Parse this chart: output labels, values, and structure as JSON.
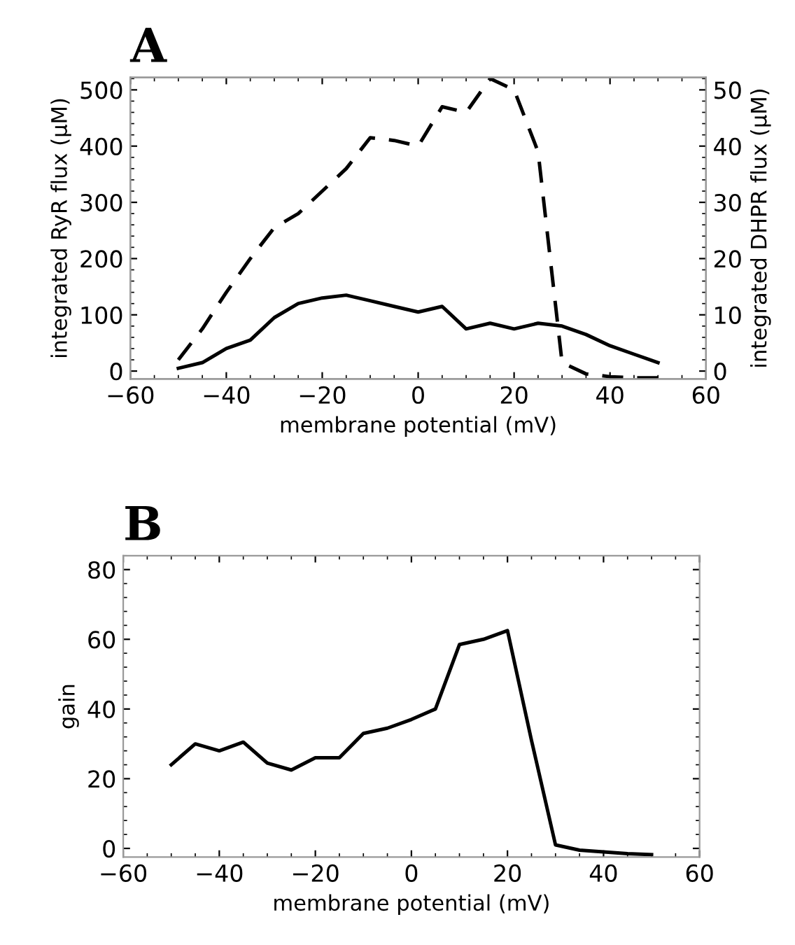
{
  "chart_data": [
    {
      "type": "line",
      "title": "A",
      "xlabel": "membrane potential (mV)",
      "ylabel": "integrated RyR flux (μM)",
      "y2label": "integrated DHPR flux (μM)",
      "x": [
        -50,
        -45,
        -40,
        -35,
        -30,
        -25,
        -20,
        -15,
        -10,
        -5,
        0,
        5,
        10,
        15,
        20,
        25,
        30,
        35,
        40,
        45,
        50
      ],
      "series": [
        {
          "color": "#000000",
          "line_style": "solid",
          "values": [
            5,
            15,
            40,
            55,
            95,
            120,
            130,
            135,
            125,
            115,
            105,
            115,
            75,
            85,
            75,
            85,
            80,
            65,
            45,
            30,
            15
          ]
        },
        {
          "color": "#000000",
          "line_style": "dashed",
          "axis": "y2",
          "values": [
            2,
            7.5,
            14,
            20,
            25.5,
            28,
            32,
            36,
            41.5,
            41,
            40,
            47,
            46,
            52,
            50,
            39,
            1.5,
            -0.5,
            -1,
            -1.2,
            -1.2
          ]
        }
      ],
      "xlim": [
        -60,
        60
      ],
      "xticks": [
        {
          "value": -60,
          "label": "−60"
        },
        {
          "value": -40,
          "label": "−40"
        },
        {
          "value": -20,
          "label": "−20"
        },
        0,
        20,
        40,
        60
      ],
      "ylim": [
        -14,
        522
      ],
      "yticks": [
        0,
        100,
        200,
        300,
        400,
        500
      ],
      "y2lim": [
        -1.4,
        52.2
      ],
      "y2ticks": [
        0,
        10,
        20,
        30,
        40,
        50
      ],
      "grid": false,
      "marker": "none"
    },
    {
      "type": "line",
      "title": "B",
      "xlabel": "membrane potential (mV)",
      "ylabel": "gain",
      "x": [
        -50,
        -45,
        -40,
        -35,
        -30,
        -25,
        -20,
        -15,
        -10,
        -5,
        0,
        5,
        10,
        15,
        20,
        25,
        30,
        35,
        40,
        45,
        50
      ],
      "series": [
        {
          "color": "#000000",
          "line_style": "solid",
          "values": [
            24,
            30,
            28,
            30.5,
            24.5,
            22.5,
            26,
            26,
            33,
            34.5,
            37,
            40,
            58.5,
            60,
            62.5,
            31,
            1,
            -0.5,
            -1,
            -1.5,
            -1.8
          ]
        }
      ],
      "xlim": [
        -60,
        60
      ],
      "xticks": [
        {
          "value": -60,
          "label": "−60"
        },
        {
          "value": -40,
          "label": "−40"
        },
        {
          "value": -20,
          "label": "−20"
        },
        0,
        20,
        40,
        60
      ],
      "ylim": [
        -2.5,
        84
      ],
      "yticks": [
        0,
        20,
        40,
        60,
        80
      ],
      "grid": false,
      "marker": "none"
    }
  ]
}
